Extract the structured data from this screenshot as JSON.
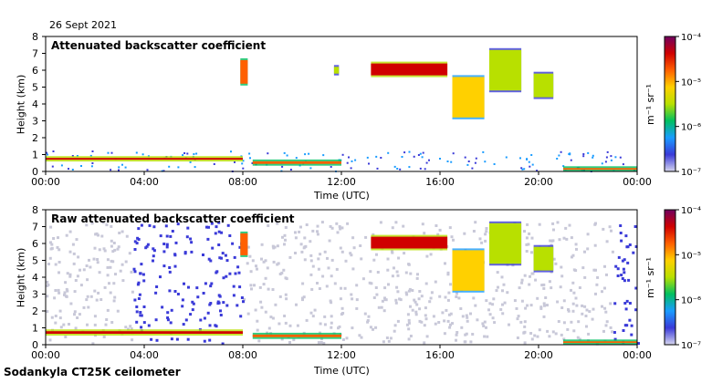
{
  "header": {
    "date": "26 Sept 2021"
  },
  "footer": {
    "instrument": "Sodankyla CT25K ceilometer"
  },
  "colors": {
    "clear": "#ffffff",
    "frame": "#000000",
    "noise": "#c8c8d8",
    "scale": [
      "#d6d6ee",
      "#3a3ad8",
      "#1a9cff",
      "#00c060",
      "#b8e000",
      "#ffd000",
      "#ff6000",
      "#d00000",
      "#700060"
    ]
  },
  "chart_data": [
    {
      "id": "top",
      "type": "heatmap",
      "title": "Attenuated backscatter coefficient",
      "xlabel": "Time (UTC)",
      "ylabel": "Height (km)",
      "xlim": [
        0,
        24
      ],
      "ylim": [
        0,
        8
      ],
      "xticks": [
        "00:00",
        "04:00",
        "08:00",
        "12:00",
        "16:00",
        "20:00",
        "00:00"
      ],
      "yticks": [
        "0",
        "1",
        "2",
        "3",
        "4",
        "5",
        "6",
        "7",
        "8"
      ],
      "colorbar": {
        "label": "m⁻¹ sr⁻¹",
        "ticks": [
          "10⁻⁴",
          "10⁻⁵",
          "10⁻⁶",
          "10⁻⁷"
        ]
      },
      "features": [
        {
          "name": "boundary layer",
          "t": [
            0,
            8
          ],
          "h": [
            0.7,
            0.8
          ],
          "level": 7
        },
        {
          "name": "cloud 8h",
          "t": [
            7.9,
            8.2
          ],
          "h": [
            5.2,
            6.6
          ],
          "level": 6
        },
        {
          "name": "low layer",
          "t": [
            8.4,
            12
          ],
          "h": [
            0.45,
            0.6
          ],
          "level": 6
        },
        {
          "name": "cloud 11.8h",
          "t": [
            11.7,
            11.9
          ],
          "h": [
            5.8,
            6.2
          ],
          "level": 4
        },
        {
          "name": "cloud deck",
          "t": [
            13.2,
            16.3
          ],
          "h": [
            5.7,
            6.4
          ],
          "level": 7
        },
        {
          "name": "cloud 17h",
          "t": [
            16.5,
            17.8
          ],
          "h": [
            3.2,
            5.6
          ],
          "level": 5
        },
        {
          "name": "cloud 18.5h",
          "t": [
            18.0,
            19.3
          ],
          "h": [
            4.8,
            7.2
          ],
          "level": 4
        },
        {
          "name": "cloud 20h",
          "t": [
            19.8,
            20.6
          ],
          "h": [
            4.4,
            5.8
          ],
          "level": 4
        },
        {
          "name": "near ground",
          "t": [
            21,
            24
          ],
          "h": [
            0.1,
            0.2
          ],
          "level": 6
        }
      ]
    },
    {
      "id": "bottom",
      "type": "heatmap",
      "title": "Raw attenuated backscatter coefficient",
      "xlabel": "Time (UTC)",
      "ylabel": "Height (km)",
      "xlim": [
        0,
        24
      ],
      "ylim": [
        0,
        8
      ],
      "xticks": [
        "00:00",
        "04:00",
        "08:00",
        "12:00",
        "16:00",
        "20:00",
        "00:00"
      ],
      "yticks": [
        "0",
        "1",
        "2",
        "3",
        "4",
        "5",
        "6",
        "7",
        "8"
      ],
      "colorbar": {
        "label": "m⁻¹ sr⁻¹",
        "ticks": [
          "10⁻⁴",
          "10⁻⁵",
          "10⁻⁶",
          "10⁻⁷"
        ]
      },
      "features": [
        {
          "name": "boundary layer",
          "t": [
            0,
            8
          ],
          "h": [
            0.65,
            0.8
          ],
          "level": 7
        },
        {
          "name": "cloud 8h",
          "t": [
            7.9,
            8.2
          ],
          "h": [
            5.3,
            6.6
          ],
          "level": 6
        },
        {
          "name": "low layer",
          "t": [
            8.4,
            12
          ],
          "h": [
            0.45,
            0.6
          ],
          "level": 6
        },
        {
          "name": "cloud deck",
          "t": [
            13.2,
            16.3
          ],
          "h": [
            5.7,
            6.4
          ],
          "level": 7
        },
        {
          "name": "cloud 17h",
          "t": [
            16.5,
            17.8
          ],
          "h": [
            3.2,
            5.6
          ],
          "level": 5
        },
        {
          "name": "cloud 18.5h",
          "t": [
            18.0,
            19.3
          ],
          "h": [
            4.8,
            7.2
          ],
          "level": 4
        },
        {
          "name": "cloud 20h",
          "t": [
            19.8,
            20.6
          ],
          "h": [
            4.4,
            5.8
          ],
          "level": 4
        },
        {
          "name": "near ground",
          "t": [
            21,
            24
          ],
          "h": [
            0.1,
            0.2
          ],
          "level": 6
        }
      ]
    }
  ]
}
